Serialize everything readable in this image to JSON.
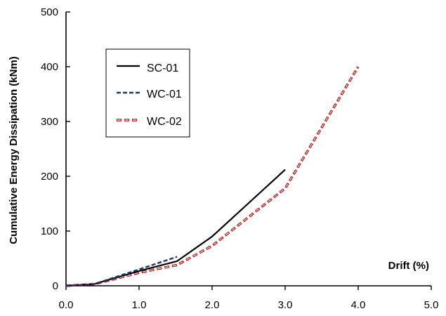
{
  "chart_data": {
    "type": "line",
    "xlabel": "Drift (%)",
    "ylabel": "Cumulative Energy Dissipation (kNm)",
    "xlim": [
      0,
      5
    ],
    "ylim": [
      0,
      500
    ],
    "xticks": [
      "0.0",
      "1.0",
      "2.0",
      "3.0",
      "4.0",
      "5.0"
    ],
    "yticks": [
      "0",
      "100",
      "200",
      "300",
      "400",
      "500"
    ],
    "grid": false,
    "legend_position": "top-left",
    "series": [
      {
        "name": "SC-01",
        "style": "solid",
        "color": "#000000",
        "x": [
          0.0,
          0.38,
          1.0,
          1.52,
          2.0,
          3.0
        ],
        "y": [
          0,
          3,
          27,
          45,
          90,
          212
        ]
      },
      {
        "name": "WC-01",
        "style": "dashed",
        "color": "#1f3864",
        "x": [
          0.0,
          0.38,
          1.0,
          1.52
        ],
        "y": [
          0,
          3,
          30,
          53
        ]
      },
      {
        "name": "WC-02",
        "style": "dashed-hollow",
        "color": "#c00000",
        "x": [
          0.0,
          0.38,
          1.0,
          1.52,
          2.0,
          3.0,
          4.0
        ],
        "y": [
          0,
          3,
          24,
          38,
          73,
          178,
          400
        ]
      }
    ]
  }
}
